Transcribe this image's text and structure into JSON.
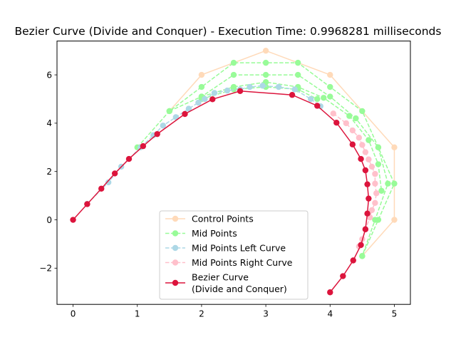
{
  "chart_data": {
    "type": "line",
    "title": "Bezier Curve (Divide and Conquer) - Execution Time: 0.9968281 milliseconds",
    "xlabel": "",
    "ylabel": "",
    "xlim": [
      -0.25,
      5.25
    ],
    "ylim": [
      -3.5,
      7.4
    ],
    "x_ticks": [
      0,
      1,
      2,
      3,
      4,
      5
    ],
    "x_tick_labels": [
      "0",
      "1",
      "2",
      "3",
      "4",
      "5"
    ],
    "y_ticks": [
      -2,
      0,
      2,
      4,
      6
    ],
    "y_tick_labels": [
      "−2",
      "0",
      "2",
      "4",
      "6"
    ],
    "grid": false,
    "legend_position": "lower-center",
    "colors": {
      "control": "#ffdab9",
      "mid": "#98fb98",
      "left": "#add8e6",
      "right": "#ffc0cb",
      "bezier": "#dc143c"
    },
    "series": [
      {
        "name": "Control Points",
        "key": "control",
        "style": "solid",
        "points": [
          [
            1.5,
            4.5
          ],
          [
            2,
            6
          ],
          [
            3,
            7
          ],
          [
            4,
            6
          ],
          [
            5,
            3
          ],
          [
            5,
            0
          ],
          [
            4.5,
            -1.5
          ]
        ]
      },
      {
        "name": "Mid Points",
        "key": "mid",
        "style": "dashed",
        "polylines": [
          [
            [
              1,
              3
            ],
            [
              1.5,
              4.5
            ],
            [
              2,
              5.5
            ],
            [
              2.5,
              6.5
            ],
            [
              3,
              6.5
            ],
            [
              3.5,
              6.5
            ],
            [
              4,
              5.5
            ],
            [
              4.5,
              4.5
            ],
            [
              4.75,
              3
            ],
            [
              5,
              1.5
            ],
            [
              4.75,
              0
            ],
            [
              4.5,
              -1.5
            ]
          ],
          [
            [
              1.5,
              4.5
            ],
            [
              2,
              5.1
            ],
            [
              2.5,
              6
            ],
            [
              3,
              6
            ],
            [
              3.5,
              6
            ],
            [
              4,
              5.1
            ],
            [
              4.4,
              4.2
            ],
            [
              4.75,
              3
            ],
            [
              4.9,
              1.5
            ],
            [
              4.7,
              0
            ],
            [
              4.5,
              -1.5
            ]
          ],
          [
            [
              2,
              5.1
            ],
            [
              2.5,
              5.5
            ],
            [
              3,
              5.7
            ],
            [
              3.5,
              5.5
            ],
            [
              3.9,
              5.05
            ],
            [
              4.3,
              4.3
            ],
            [
              4.6,
              3.3
            ],
            [
              4.75,
              2.3
            ],
            [
              4.8,
              1.2
            ]
          ],
          [
            [
              2,
              5
            ],
            [
              2.5,
              5.4
            ],
            [
              3,
              5.5
            ],
            [
              3.5,
              5.4
            ],
            [
              3.8,
              5
            ]
          ]
        ]
      },
      {
        "name": "Mid Points Left Curve",
        "key": "left",
        "style": "dashed",
        "points": [
          [
            0.22,
            0.66
          ],
          [
            0.55,
            1.55
          ],
          [
            0.75,
            2.2
          ],
          [
            1.05,
            3.0
          ],
          [
            1.25,
            3.5
          ],
          [
            1.4,
            3.9
          ],
          [
            1.6,
            4.25
          ],
          [
            1.8,
            4.6
          ],
          [
            1.95,
            4.85
          ],
          [
            2.05,
            5.0
          ],
          [
            2.2,
            5.25
          ],
          [
            2.4,
            5.35
          ],
          [
            2.6,
            5.4
          ],
          [
            2.75,
            5.5
          ],
          [
            2.95,
            5.55
          ],
          [
            3.2,
            5.5
          ],
          [
            3.45,
            5.4
          ],
          [
            3.7,
            5.0
          ],
          [
            3.85,
            4.7
          ]
        ]
      },
      {
        "name": "Mid Points Right Curve",
        "key": "right",
        "style": "dashed",
        "points": [
          [
            4.05,
            4.4
          ],
          [
            4.25,
            4.0
          ],
          [
            4.35,
            3.7
          ],
          [
            4.45,
            3.4
          ],
          [
            4.5,
            3.1
          ],
          [
            4.55,
            2.8
          ],
          [
            4.6,
            2.5
          ],
          [
            4.65,
            2.2
          ],
          [
            4.7,
            1.9
          ],
          [
            4.7,
            1.5
          ],
          [
            4.72,
            1.1
          ],
          [
            4.7,
            0.7
          ],
          [
            4.65,
            0.4
          ],
          [
            4.62,
            0.1
          ],
          [
            4.55,
            -0.4
          ],
          [
            4.5,
            -0.8
          ],
          [
            4.45,
            -1.1
          ]
        ]
      },
      {
        "name": "Bezier Curve\n(Divide and Conquer)",
        "key": "bezier",
        "style": "solid",
        "points": [
          [
            0,
            0
          ],
          [
            0.22,
            0.65
          ],
          [
            0.44,
            1.29
          ],
          [
            0.65,
            1.92
          ],
          [
            0.87,
            2.52
          ],
          [
            1.09,
            3.05
          ],
          [
            1.31,
            3.55
          ],
          [
            1.74,
            4.38
          ],
          [
            2.17,
            4.99
          ],
          [
            2.6,
            5.33
          ],
          [
            3.41,
            5.17
          ],
          [
            3.8,
            4.72
          ],
          [
            4.1,
            4.02
          ],
          [
            4.35,
            3.12
          ],
          [
            4.48,
            2.52
          ],
          [
            4.55,
            2.05
          ],
          [
            4.58,
            1.47
          ],
          [
            4.6,
            0.88
          ],
          [
            4.58,
            0.26
          ],
          [
            4.55,
            -0.39
          ],
          [
            4.48,
            -1.04
          ],
          [
            4.36,
            -1.68
          ],
          [
            4.2,
            -2.33
          ],
          [
            4.0,
            -3.0
          ]
        ]
      }
    ]
  }
}
